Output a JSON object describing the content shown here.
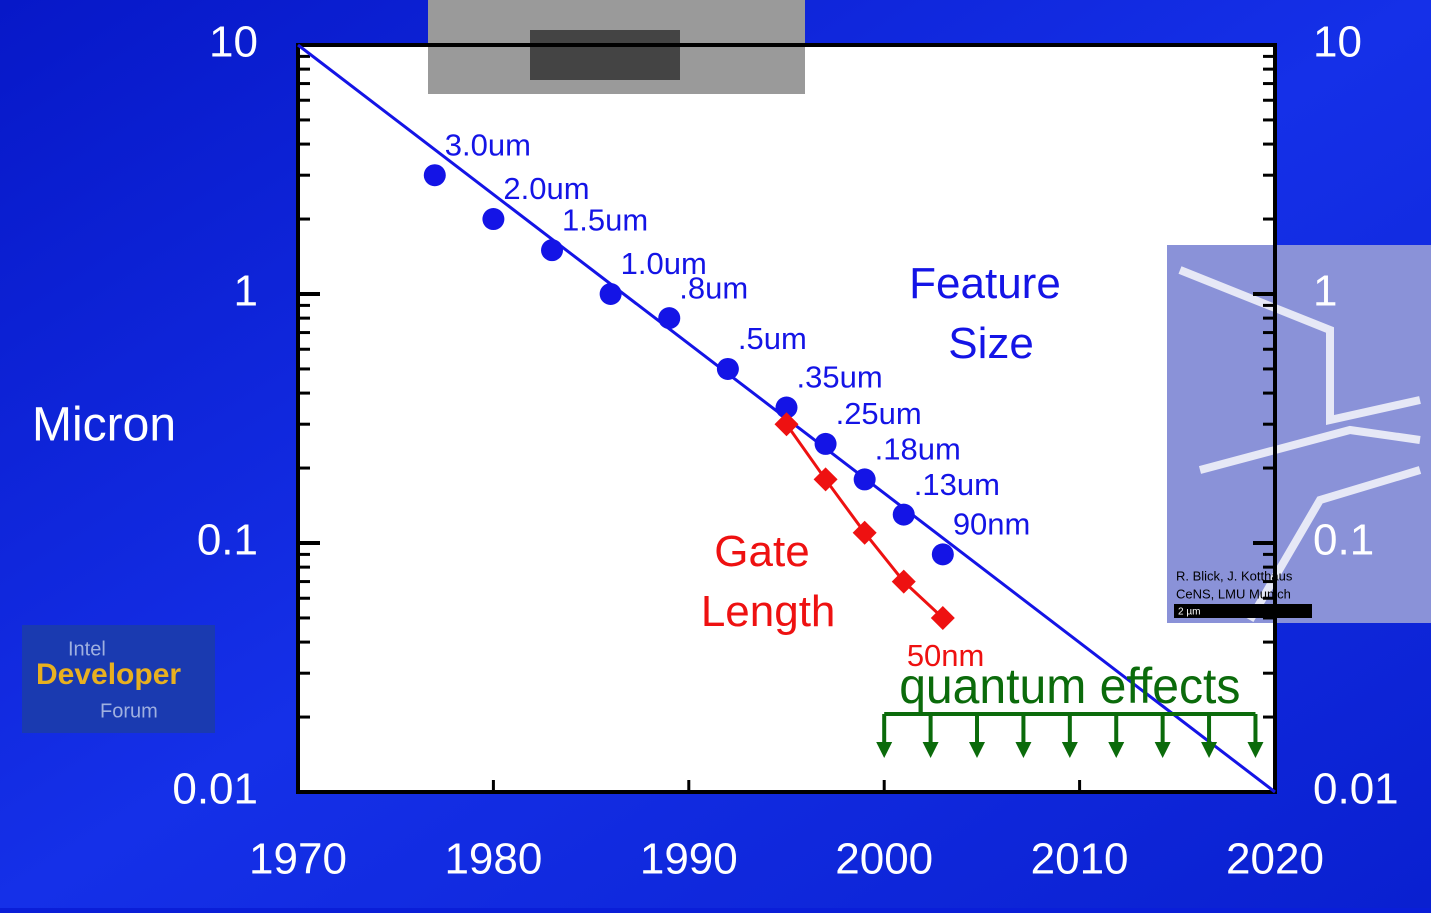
{
  "chart_data": {
    "type": "scatter",
    "y_label": "Micron",
    "yscale": "log",
    "xlim": [
      1970,
      2020
    ],
    "xticks": [
      1970,
      1980,
      1990,
      2000,
      2010,
      2020
    ],
    "ylim": [
      0.01,
      10
    ],
    "yticks": [
      10,
      1,
      0.1,
      0.01
    ],
    "series": [
      {
        "name": "Feature Size",
        "color": "#1414e6",
        "marker": "circle",
        "connected": false,
        "x": [
          1977,
          1980,
          1983,
          1986,
          1989,
          1992,
          1995,
          1997,
          1999,
          2001,
          2003
        ],
        "values": [
          3.0,
          2.0,
          1.5,
          1.0,
          0.8,
          0.5,
          0.35,
          0.25,
          0.18,
          0.13,
          0.09
        ],
        "value_labels": [
          "3.0um",
          "2.0um",
          "1.5um",
          "1.0um",
          ".8um",
          ".5um",
          ".35um",
          ".25um",
          ".18um",
          ".13um",
          "90nm"
        ]
      },
      {
        "name": "Gate Length",
        "color": "#ee1111",
        "marker": "diamond",
        "connected": true,
        "x": [
          1995,
          1997,
          1999,
          2001,
          2003
        ],
        "values": [
          0.3,
          0.18,
          0.11,
          0.07,
          0.05
        ],
        "value_labels": [
          null,
          null,
          null,
          null,
          "50nm"
        ]
      }
    ],
    "trend": {
      "x": [
        1970,
        2020
      ],
      "values": [
        10,
        0.01
      ],
      "color": "#1414e6"
    },
    "annotation": {
      "text": "quantum effects",
      "color": "#0b6b0b",
      "xrange": [
        2000,
        2019
      ]
    },
    "image_caption": [
      "R. Blick, J. Kotthaus",
      "CeNS, LMU Munich",
      "2 µm"
    ],
    "logo": [
      "Intel",
      "Developer",
      "Forum"
    ]
  }
}
